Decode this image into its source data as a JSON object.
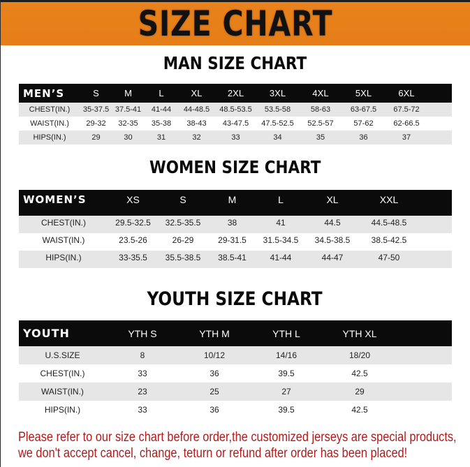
{
  "banner_title": "SIZE CHART",
  "colors": {
    "banner": "#e8821c",
    "header_row": "#0b0b0b",
    "stripe": "#e6e6e6",
    "note": "#b31b1b"
  },
  "men": {
    "title": "MAN SIZE CHART",
    "header_label": "MEN’S",
    "sizes": [
      "S",
      "M",
      "L",
      "XL",
      "2XL",
      "3XL",
      "4XL",
      "5XL",
      "6XL"
    ],
    "rows": [
      {
        "label": "CHEST(IN.)",
        "values": [
          "35-37.5",
          "37.5-41",
          "41-44",
          "44-48.5",
          "48.5-53.5",
          "53.5-58",
          "58-63",
          "63-67.5",
          "67.5-72"
        ]
      },
      {
        "label": "WAIST(IN.)",
        "values": [
          "29-32",
          "32-35",
          "35-38",
          "38-43",
          "43-47.5",
          "47.5-52.5",
          "52.5-57",
          "57-62",
          "62-66.5"
        ]
      },
      {
        "label": "HIPS(IN.)",
        "values": [
          "29",
          "30",
          "31",
          "32",
          "33",
          "34",
          "35",
          "36",
          "37"
        ]
      }
    ]
  },
  "women": {
    "title": "WOMEN SIZE CHART",
    "header_label": "WOMEN’S",
    "sizes": [
      "XS",
      "S",
      "M",
      "L",
      "XL",
      "XXL"
    ],
    "rows": [
      {
        "label": "CHEST(IN.)",
        "values": [
          "29.5-32.5",
          "32.5-35.5",
          "38",
          "41",
          "44.5",
          "44.5-48.5"
        ]
      },
      {
        "label": "WAIST(IN.)",
        "values": [
          "23.5-26",
          "26-29",
          "29-31.5",
          "31.5-34.5",
          "34.5-38.5",
          "38.5-42.5"
        ]
      },
      {
        "label": "HIPS(IN.)",
        "values": [
          "33-35.5",
          "35.5-38.5",
          "38.5-41",
          "41-44",
          "44-47",
          "47-50"
        ]
      }
    ]
  },
  "youth": {
    "title": "YOUTH SIZE CHART",
    "header_label": "YOUTH",
    "sizes": [
      "YTH S",
      "YTH M",
      "YTH L",
      "YTH XL"
    ],
    "rows": [
      {
        "label": "U.S.SIZE",
        "values": [
          "8",
          "10/12",
          "14/16",
          "18/20"
        ]
      },
      {
        "label": "CHEST(IN.)",
        "values": [
          "33",
          "36",
          "39.5",
          "42.5"
        ]
      },
      {
        "label": "WAIST(IN.)",
        "values": [
          "23",
          "25",
          "27",
          "29"
        ]
      },
      {
        "label": "HIPS(IN.)",
        "values": [
          "33",
          "36",
          "39.5",
          "42.5"
        ]
      }
    ]
  },
  "note": {
    "line1": "Please refer to our size chart before order,the customized jerseys are special products,",
    "line2": "we don't accept cancel, change, teturn or refund after order has been placed!"
  }
}
